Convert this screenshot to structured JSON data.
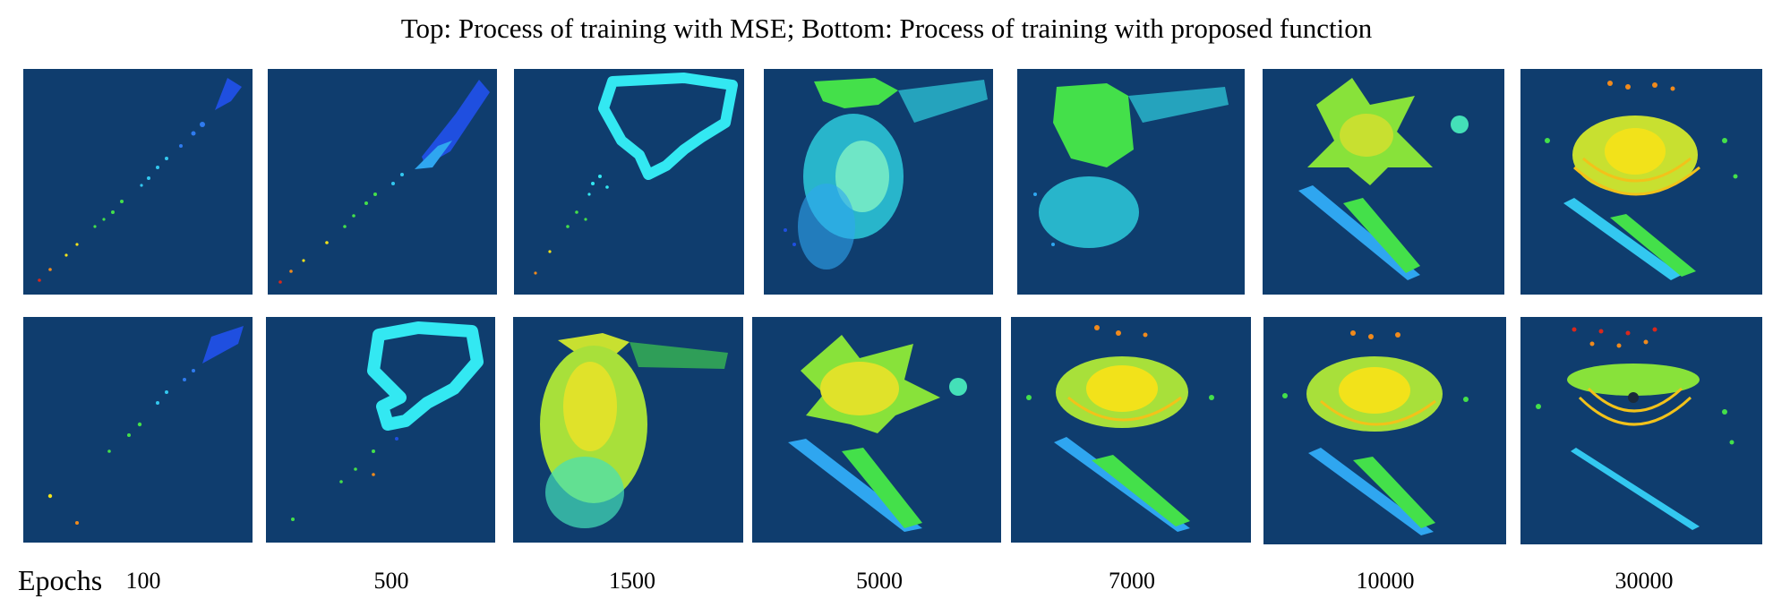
{
  "title": "Top: Process of training with MSE; Bottom: Process of training with proposed function",
  "epochs_label": "Epochs",
  "epochs": [
    "100",
    "500",
    "1500",
    "5000",
    "7000",
    "10000",
    "30000"
  ],
  "rows": [
    "MSE",
    "proposed function"
  ],
  "colors": {
    "panel_background": "#0f3d6e",
    "point_blue": "#1f4fe0",
    "point_cyan": "#33e8f2",
    "point_green": "#44e04a",
    "point_yellow": "#f2e21a",
    "point_orange": "#f08a1c",
    "point_red": "#d8281c"
  }
}
